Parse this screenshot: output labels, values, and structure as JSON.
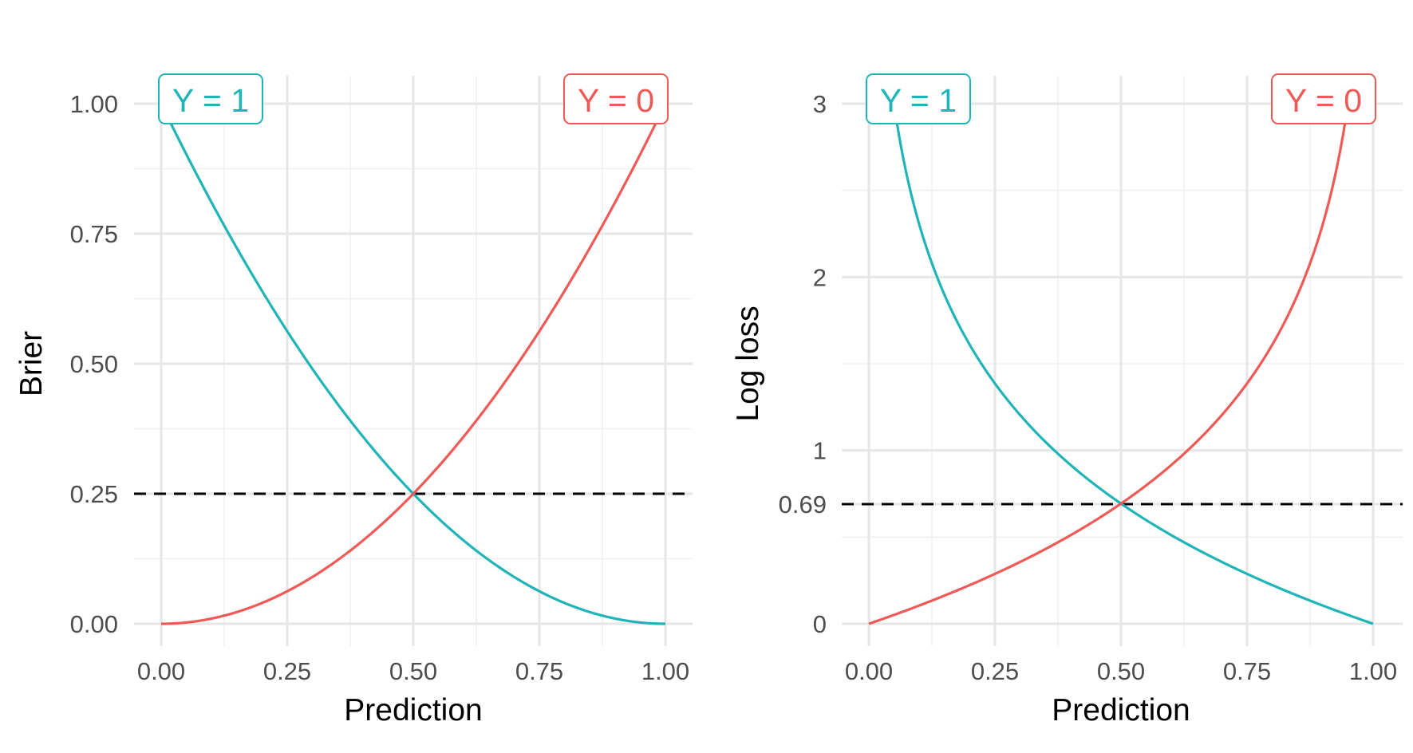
{
  "colors": {
    "y1": "#1fb5b8",
    "y0": "#ef5a57",
    "grid_major": "#e6e6e6",
    "grid_minor": "#f0f0f0",
    "reference": "#000000"
  },
  "chart_data": [
    {
      "type": "line",
      "title": "",
      "xlabel": "Prediction",
      "ylabel": "Brier",
      "xlim": [
        0,
        1
      ],
      "ylim": [
        0,
        1
      ],
      "x_ticks": [
        0,
        0.25,
        0.5,
        0.75,
        1
      ],
      "x_tick_labels": [
        "0.00",
        "0.25",
        "0.50",
        "0.75",
        "1.00"
      ],
      "y_ticks": [
        0,
        0.25,
        0.5,
        0.75,
        1
      ],
      "y_tick_labels": [
        "0.00",
        "0.25",
        "0.50",
        "0.75",
        "1.00"
      ],
      "grid": true,
      "reference_line": {
        "y": 0.25,
        "style": "dashed"
      },
      "series": [
        {
          "name": "Y = 1",
          "color": "#1fb5b8",
          "x": [
            0,
            0.1,
            0.2,
            0.3,
            0.4,
            0.5,
            0.6,
            0.7,
            0.8,
            0.9,
            1
          ],
          "y": [
            1,
            0.81,
            0.64,
            0.49,
            0.36,
            0.25,
            0.16,
            0.09,
            0.04,
            0.01,
            0
          ]
        },
        {
          "name": "Y = 0",
          "color": "#ef5a57",
          "x": [
            0,
            0.1,
            0.2,
            0.3,
            0.4,
            0.5,
            0.6,
            0.7,
            0.8,
            0.9,
            1
          ],
          "y": [
            0,
            0.01,
            0.04,
            0.09,
            0.16,
            0.25,
            0.36,
            0.49,
            0.64,
            0.81,
            1
          ]
        }
      ]
    },
    {
      "type": "line",
      "title": "",
      "xlabel": "Prediction",
      "ylabel": "Log loss",
      "xlim": [
        0,
        1
      ],
      "ylim": [
        0,
        3
      ],
      "x_ticks": [
        0,
        0.25,
        0.5,
        0.75,
        1
      ],
      "x_tick_labels": [
        "0.00",
        "0.25",
        "0.50",
        "0.75",
        "1.00"
      ],
      "y_ticks": [
        0,
        0.69,
        1,
        2,
        3
      ],
      "y_tick_labels": [
        "0",
        "0.69",
        "1",
        "2",
        "3"
      ],
      "grid": true,
      "reference_line": {
        "y": 0.69,
        "style": "dashed"
      },
      "series": [
        {
          "name": "Y = 1",
          "color": "#1fb5b8",
          "x": [
            0.05,
            0.1,
            0.2,
            0.3,
            0.4,
            0.5,
            0.6,
            0.7,
            0.8,
            0.9,
            1
          ],
          "y": [
            3.0,
            2.3,
            1.61,
            1.2,
            0.92,
            0.69,
            0.51,
            0.36,
            0.22,
            0.11,
            0
          ]
        },
        {
          "name": "Y = 0",
          "color": "#ef5a57",
          "x": [
            0,
            0.1,
            0.2,
            0.3,
            0.4,
            0.5,
            0.6,
            0.7,
            0.8,
            0.9,
            0.95
          ],
          "y": [
            0,
            0.11,
            0.22,
            0.36,
            0.51,
            0.69,
            0.92,
            1.2,
            1.61,
            2.3,
            3.0
          ]
        }
      ]
    }
  ]
}
